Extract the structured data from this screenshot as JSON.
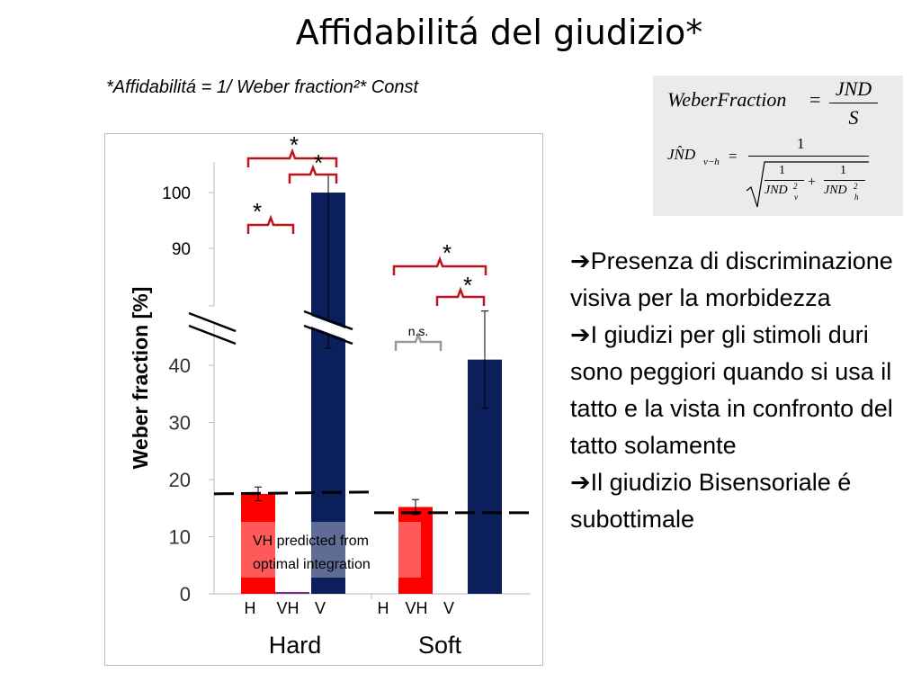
{
  "slide": {
    "title": "Affidabilitá del giudizio*",
    "subtitle": "*Affidabilitá = 1/ Weber fraction²* Const"
  },
  "formula": {
    "lhs1": "WeberFraction",
    "eq": "=",
    "num1": "JND",
    "den1": "S",
    "lhs2": "JN̂D",
    "lhs2_sub": "v−h",
    "num2": "1",
    "inner_num_a": "1",
    "inner_den_a": "JND",
    "inner_den_a_sub": "v",
    "inner_den_a_sup": "2",
    "plus": "+",
    "inner_num_b": "1",
    "inner_den_b": "JND",
    "inner_den_b_sub": "h",
    "inner_den_b_sup": "2"
  },
  "bullets": [
    {
      "arrow": "➔",
      "text": "Presenza di discriminazione visiva per la morbidezza"
    },
    {
      "arrow": "➔",
      "text": "I giudizi  per gli stimoli duri sono peggiori quando si usa il tatto e la vista in confronto del tatto solamente"
    },
    {
      "arrow": "➔",
      "text": "Il giudizio Bisensoriale é subottimale"
    }
  ],
  "chart_data": {
    "type": "bar",
    "ylabel": "Weber fraction [%]",
    "broken_axis": true,
    "lower_ticks": [
      0,
      10,
      20,
      30,
      40
    ],
    "upper_ticks": [
      90,
      100
    ],
    "groups": [
      "Hard",
      "Soft"
    ],
    "categories": [
      "H",
      "VH",
      "V"
    ],
    "colors": {
      "H": "#ff0000",
      "VH": "#ffffff",
      "V": "#0a1f5c"
    },
    "bars": [
      {
        "group": "Hard",
        "category": "H",
        "value": 17.5,
        "err": 1.2
      },
      {
        "group": "Hard",
        "category": "VH",
        "value": 0,
        "err": 0
      },
      {
        "group": "Hard",
        "category": "V",
        "value": 100,
        "err": 15
      },
      {
        "group": "Soft",
        "category": "H",
        "value": 15.2,
        "err": 1.3
      },
      {
        "group": "Soft",
        "category": "VH",
        "value": 0,
        "err": 0
      },
      {
        "group": "Soft",
        "category": "V",
        "value": 41,
        "err": 8.5
      }
    ],
    "predicted_lines": [
      {
        "group": "Hard",
        "value": 17.5
      },
      {
        "group": "Soft",
        "value": 14.2
      }
    ],
    "predicted_label": "VH predicted from optimal integration",
    "significance": [
      {
        "label": "*"
      },
      {
        "label": "*"
      },
      {
        "label": "*"
      },
      {
        "label": "*"
      },
      {
        "label": "*"
      },
      {
        "label": "n.s."
      }
    ]
  }
}
